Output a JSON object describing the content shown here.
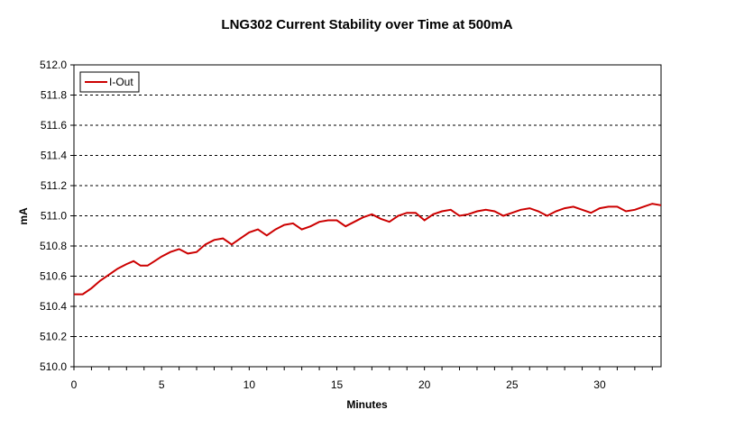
{
  "chart_data": {
    "type": "line",
    "title": "LNG302 Current Stability over Time at 500mA",
    "xlabel": "Minutes",
    "ylabel": "mA",
    "xlim": [
      0,
      33.5
    ],
    "ylim": [
      510.0,
      512.0
    ],
    "x_ticks": [
      0,
      5,
      10,
      15,
      20,
      25,
      30
    ],
    "y_ticks": [
      "510.0",
      "510.2",
      "510.4",
      "510.6",
      "510.8",
      "511.0",
      "511.2",
      "511.4",
      "511.6",
      "511.8",
      "512.0"
    ],
    "grid": "horizontal dashed",
    "legend": "top-left",
    "series": [
      {
        "name": "I-Out",
        "color": "#cc0000",
        "x": [
          0,
          0.5,
          1,
          1.5,
          2,
          2.5,
          3,
          3.4,
          3.8,
          4.2,
          4.6,
          5,
          5.5,
          6,
          6.5,
          7,
          7.5,
          8,
          8.5,
          9,
          9.5,
          10,
          10.5,
          11,
          11.5,
          12,
          12.5,
          13,
          13.5,
          14,
          14.5,
          15,
          15.5,
          16,
          16.5,
          17,
          17.5,
          18,
          18.5,
          19,
          19.5,
          20,
          20.5,
          21,
          21.5,
          22,
          22.5,
          23,
          23.5,
          24,
          24.5,
          25,
          25.5,
          26,
          26.5,
          27,
          27.5,
          28,
          28.5,
          29,
          29.5,
          30,
          30.5,
          31,
          31.5,
          32,
          32.5,
          33,
          33.5
        ],
        "values": [
          510.48,
          510.48,
          510.52,
          510.57,
          510.61,
          510.65,
          510.68,
          510.7,
          510.67,
          510.67,
          510.7,
          510.73,
          510.76,
          510.78,
          510.75,
          510.76,
          510.81,
          510.84,
          510.85,
          510.81,
          510.85,
          510.89,
          510.91,
          510.87,
          510.91,
          510.94,
          510.95,
          510.91,
          510.93,
          510.96,
          510.97,
          510.97,
          510.93,
          510.96,
          510.99,
          511.01,
          510.98,
          510.96,
          511.0,
          511.02,
          511.02,
          510.97,
          511.01,
          511.03,
          511.04,
          511.0,
          511.01,
          511.03,
          511.04,
          511.03,
          511.0,
          511.02,
          511.04,
          511.05,
          511.03,
          511.0,
          511.03,
          511.05,
          511.06,
          511.04,
          511.02,
          511.05,
          511.06,
          511.06,
          511.03,
          511.04,
          511.06,
          511.08,
          511.07
        ]
      }
    ]
  }
}
